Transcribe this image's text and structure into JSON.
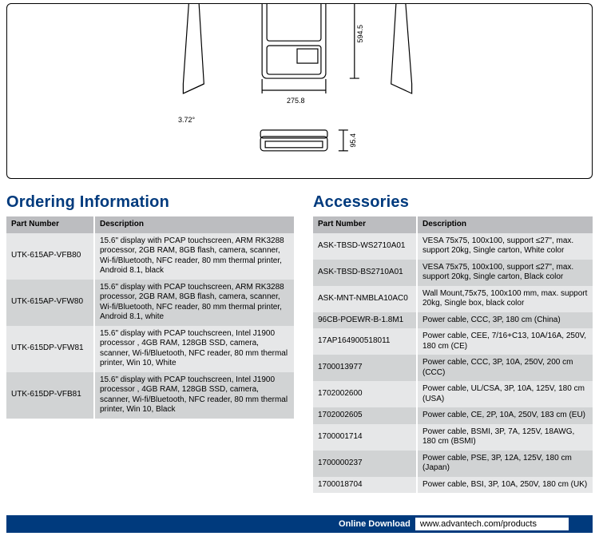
{
  "diagram": {
    "dim_h": "594.5",
    "dim_w": "275.8",
    "dim_d": "3.72°",
    "dim_base_h": "95.4"
  },
  "ordering": {
    "heading": "Ordering Information",
    "cols": {
      "pn": "Part Number",
      "desc": "Description"
    },
    "rows": [
      {
        "pn": "UTK-615AP-VFB80",
        "desc": "15.6\" display with PCAP touchscreen, ARM RK3288 processor, 2GB RAM, 8GB flash, camera, scanner, Wi-fi/Bluetooth, NFC reader, 80 mm thermal printer, Android 8.1, black"
      },
      {
        "pn": "UTK-615AP-VFW80",
        "desc": "15.6\" display with PCAP touchscreen, ARM RK3288 processor, 2GB RAM, 8GB flash, camera, scanner, Wi-fi/Bluetooth, NFC reader, 80 mm thermal printer, Android 8.1, white"
      },
      {
        "pn": "UTK-615DP-VFW81",
        "desc": "15.6\" display with PCAP touchscreen, Intel J1900 processor , 4GB RAM, 128GB SSD, camera, scanner, Wi-fi/Bluetooth, NFC reader, 80 mm thermal printer, Win 10, White"
      },
      {
        "pn": "UTK-615DP-VFB81",
        "desc": "15.6\" display with PCAP touchscreen, Intel J1900 processor , 4GB RAM, 128GB SSD, camera, scanner, Wi-fi/Bluetooth, NFC reader, 80 mm thermal printer, Win 10, Black"
      }
    ]
  },
  "accessories": {
    "heading": "Accessories",
    "cols": {
      "pn": "Part Number",
      "desc": "Description"
    },
    "rows": [
      {
        "pn": "ASK-TBSD-WS2710A01",
        "desc": "VESA 75x75, 100x100, support ≤27\", max. support 20kg, Single carton, White color"
      },
      {
        "pn": "ASK-TBSD-BS2710A01",
        "desc": "VESA 75x75, 100x100, support ≤27\", max. support 20kg, Single carton, Black color"
      },
      {
        "pn": "ASK-MNT-NMBLA10AC0",
        "desc": "Wall Mount,75x75, 100x100 mm, max. support 20kg, Single box, black color"
      },
      {
        "pn": "96CB-POEWR-B-1.8M1",
        "desc": "Power cable, CCC, 3P, 180 cm (China)"
      },
      {
        "pn": "17AP164900518011",
        "desc": "Power cable, CEE, 7/16+C13, 10A/16A, 250V, 180 cm (CE)"
      },
      {
        "pn": "1700013977",
        "desc": "Power cable, CCC, 3P, 10A, 250V, 200 cm (CCC)"
      },
      {
        "pn": "1702002600",
        "desc": "Power cable, UL/CSA, 3P, 10A, 125V, 180 cm (USA)"
      },
      {
        "pn": "1702002605",
        "desc": "Power cable, CE, 2P, 10A, 250V, 183 cm (EU)"
      },
      {
        "pn": "1700001714",
        "desc": "Power cable, BSMI, 3P, 7A, 125V, 18AWG, 180 cm (BSMI)"
      },
      {
        "pn": "1700000237",
        "desc": "Power cable, PSE, 3P, 12A, 125V, 180 cm (Japan)"
      },
      {
        "pn": "1700018704",
        "desc": "Power cable, BSI, 3P, 10A, 250V, 180 cm (UK)"
      }
    ]
  },
  "footer": {
    "label": "Online Download",
    "url": "www.advantech.com/products"
  },
  "styles": {
    "brand_blue": "#003a7d",
    "header_grey": "#bcbdc0",
    "row_a": "#e6e7e8",
    "row_b": "#d1d3d4"
  }
}
